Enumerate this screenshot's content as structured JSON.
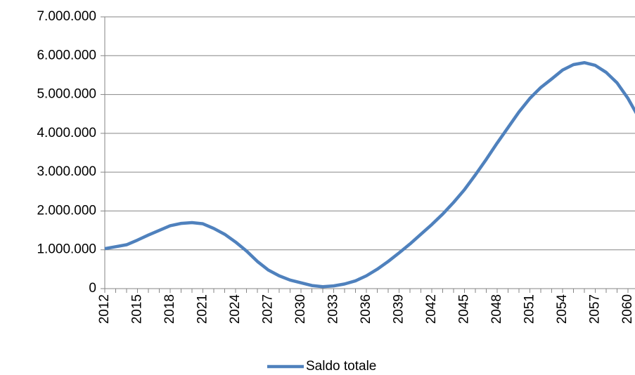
{
  "chart_data": {
    "type": "line",
    "categories": [
      "2012",
      null,
      null,
      "2015",
      null,
      null,
      "2018",
      null,
      null,
      "2021",
      null,
      null,
      "2024",
      null,
      null,
      "2027",
      null,
      null,
      "2030",
      null,
      null,
      "2033",
      null,
      null,
      "2036",
      null,
      null,
      "2039",
      null,
      null,
      "2042",
      null,
      null,
      "2045",
      null,
      null,
      "2048",
      null,
      null,
      "2051",
      null,
      null,
      "2054",
      null,
      null,
      "2057",
      null,
      null,
      "2060",
      null
    ],
    "series": [
      {
        "name": "Saldo totale",
        "color": "#4f81bd",
        "values": [
          1030000,
          1080000,
          1130000,
          1250000,
          1380000,
          1500000,
          1620000,
          1680000,
          1700000,
          1670000,
          1550000,
          1400000,
          1200000,
          970000,
          700000,
          480000,
          330000,
          220000,
          150000,
          80000,
          50000,
          70000,
          120000,
          200000,
          330000,
          500000,
          700000,
          920000,
          1150000,
          1400000,
          1650000,
          1920000,
          2220000,
          2550000,
          2930000,
          3330000,
          3750000,
          4150000,
          4550000,
          4900000,
          5180000,
          5400000,
          5630000,
          5770000,
          5820000,
          5750000,
          5570000,
          5300000,
          4900000,
          4400000
        ]
      }
    ],
    "ylim": [
      0,
      7000000
    ],
    "yticks": [
      {
        "value": 0,
        "label": "0"
      },
      {
        "value": 1000000,
        "label": "1.000.000"
      },
      {
        "value": 2000000,
        "label": "2.000.000"
      },
      {
        "value": 3000000,
        "label": "3.000.000"
      },
      {
        "value": 4000000,
        "label": "4.000.000"
      },
      {
        "value": 5000000,
        "label": "5.000.000"
      },
      {
        "value": 6000000,
        "label": "6.000.000"
      },
      {
        "value": 7000000,
        "label": "7.000.000"
      }
    ],
    "grid": true,
    "legend": "bottom"
  }
}
